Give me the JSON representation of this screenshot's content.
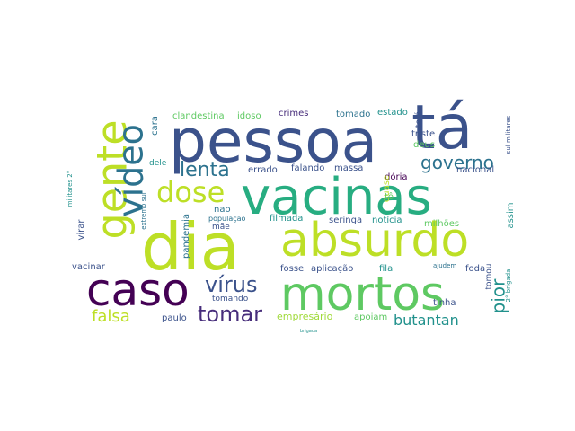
{
  "wordcloud": {
    "words": [
      {
        "text": "pessoa",
        "color": "#3b528b"
      },
      {
        "text": "vacinas",
        "color": "#27ad81"
      },
      {
        "text": "dia",
        "color": "#bddf26"
      },
      {
        "text": "absurdo",
        "color": "#bddf26"
      },
      {
        "text": "tá",
        "color": "#3b528b"
      },
      {
        "text": "mortos",
        "color": "#5ec962"
      },
      {
        "text": "caso",
        "color": "#440154"
      },
      {
        "text": "gente",
        "color": "#bddf26"
      },
      {
        "text": "vídeo",
        "color": "#2c728e"
      },
      {
        "text": "dose",
        "color": "#bddf26"
      },
      {
        "text": "lenta",
        "color": "#2c728e"
      },
      {
        "text": "governo",
        "color": "#2c728e"
      },
      {
        "text": "vírus",
        "color": "#3b528b"
      },
      {
        "text": "tomar",
        "color": "#472d7b"
      },
      {
        "text": "falsa",
        "color": "#bddf26"
      },
      {
        "text": "pior",
        "color": "#21918c"
      },
      {
        "text": "butantan",
        "color": "#21918c"
      },
      {
        "text": "empresário",
        "color": "#a0da39"
      },
      {
        "text": "apoiam",
        "color": "#5ec962"
      },
      {
        "text": "paulo",
        "color": "#3b528b"
      },
      {
        "text": "clandestina",
        "color": "#5ec962"
      },
      {
        "text": "idoso",
        "color": "#5ec962"
      },
      {
        "text": "crimes",
        "color": "#472d7b"
      },
      {
        "text": "tomado",
        "color": "#2c728e"
      },
      {
        "text": "estado",
        "color": "#21918c"
      },
      {
        "text": "terá",
        "color": "#3b528b"
      },
      {
        "text": "triste",
        "color": "#3b528b"
      },
      {
        "text": "deus",
        "color": "#5ec962"
      },
      {
        "text": "cara",
        "color": "#2c728e"
      },
      {
        "text": "dele",
        "color": "#21918c"
      },
      {
        "text": "errado",
        "color": "#3b528b"
      },
      {
        "text": "falando",
        "color": "#3b528b"
      },
      {
        "text": "massa",
        "color": "#3b528b"
      },
      {
        "text": "dória",
        "color": "#440154"
      },
      {
        "text": "quase",
        "color": "#bddf26"
      },
      {
        "text": "nacional",
        "color": "#3b528b"
      },
      {
        "text": "tô",
        "color": "#5ec962"
      },
      {
        "text": "nao",
        "color": "#2c728e"
      },
      {
        "text": "pandemia",
        "color": "#2c728e"
      },
      {
        "text": "mãe",
        "color": "#3b528b"
      },
      {
        "text": "população",
        "color": "#2c728e"
      },
      {
        "text": "filmada",
        "color": "#21918c"
      },
      {
        "text": "seringa",
        "color": "#3b528b"
      },
      {
        "text": "notícia",
        "color": "#21918c"
      },
      {
        "text": "milhões",
        "color": "#5ec962"
      },
      {
        "text": "assim",
        "color": "#21918c"
      },
      {
        "text": "virar",
        "color": "#3b528b"
      },
      {
        "text": "militares 2°",
        "color": "#21918c"
      },
      {
        "text": "extremo sul",
        "color": "#2c728e"
      },
      {
        "text": "sul militares",
        "color": "#3b528b"
      },
      {
        "text": "vacinar",
        "color": "#3b528b"
      },
      {
        "text": "fosse",
        "color": "#3b528b"
      },
      {
        "text": "aplicação",
        "color": "#3b528b"
      },
      {
        "text": "fila",
        "color": "#21918c"
      },
      {
        "text": "ajudem",
        "color": "#2c728e"
      },
      {
        "text": "foda",
        "color": "#3b528b"
      },
      {
        "text": "tomou",
        "color": "#3b528b"
      },
      {
        "text": "2° brigada",
        "color": "#21918c"
      },
      {
        "text": "tomando",
        "color": "#3b528b"
      },
      {
        "text": "tinha",
        "color": "#3b528b"
      },
      {
        "text": "brigada",
        "color": "#21918c"
      }
    ]
  }
}
